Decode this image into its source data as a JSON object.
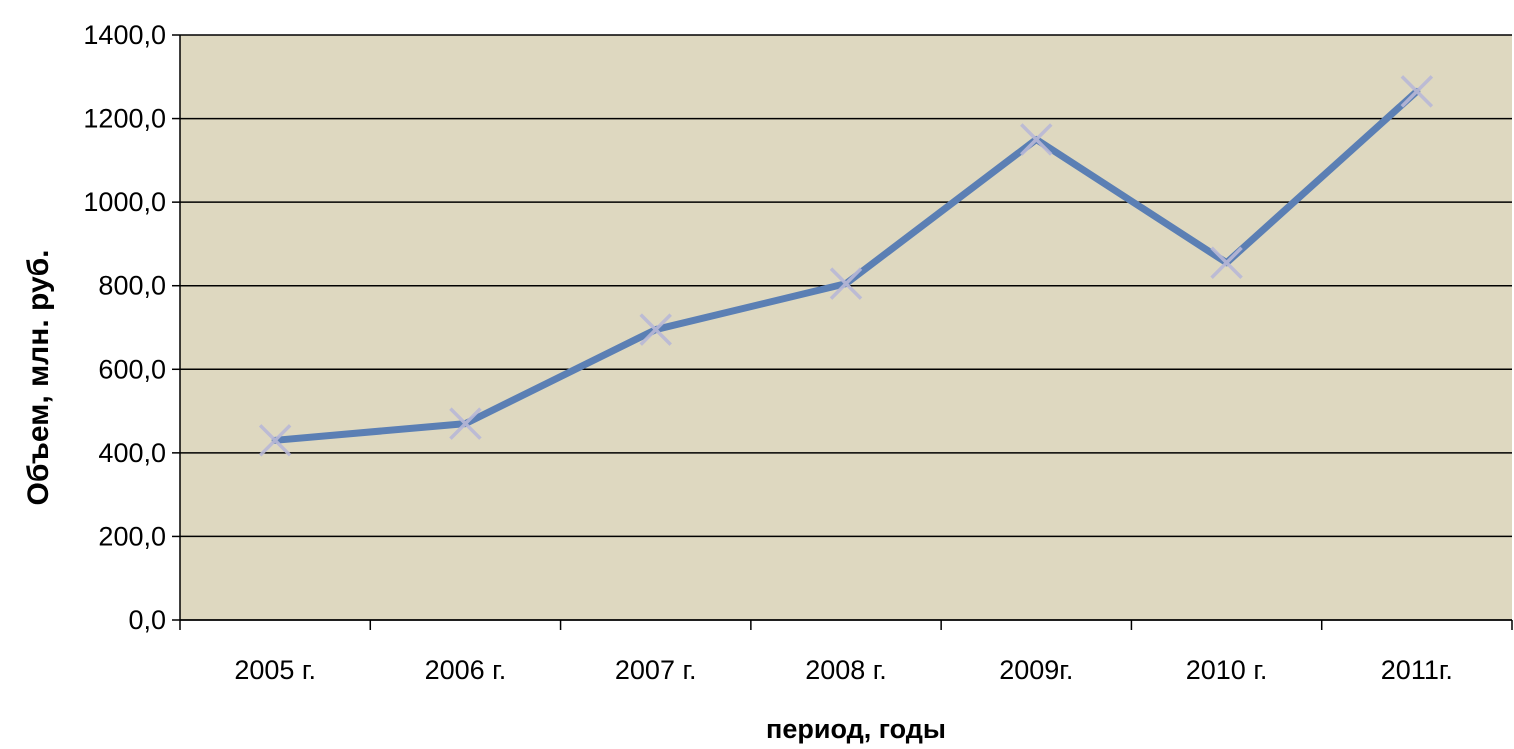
{
  "chart_data": {
    "type": "line",
    "title": "",
    "xlabel": "период, годы",
    "ylabel": "Объем, млн. руб.",
    "ylim": [
      0,
      1400
    ],
    "yticks": [
      "0,0",
      "200,0",
      "400,0",
      "600,0",
      "800,0",
      "1000,0",
      "1200,0",
      "1400,0"
    ],
    "categories": [
      "2005 г.",
      "2006 г.",
      "2007 г.",
      "2008 г.",
      "2009г.",
      "2010 г.",
      "2011г."
    ],
    "series": [
      {
        "values": [
          430,
          470,
          695,
          805,
          1150,
          855,
          1265
        ]
      }
    ],
    "grid": true,
    "legend": "none",
    "colors": {
      "plot_background": "#ded8c0",
      "line": "#5b7fb4",
      "marker": "#b8b8d6",
      "gridline": "#000000",
      "axis": "#000000"
    }
  }
}
